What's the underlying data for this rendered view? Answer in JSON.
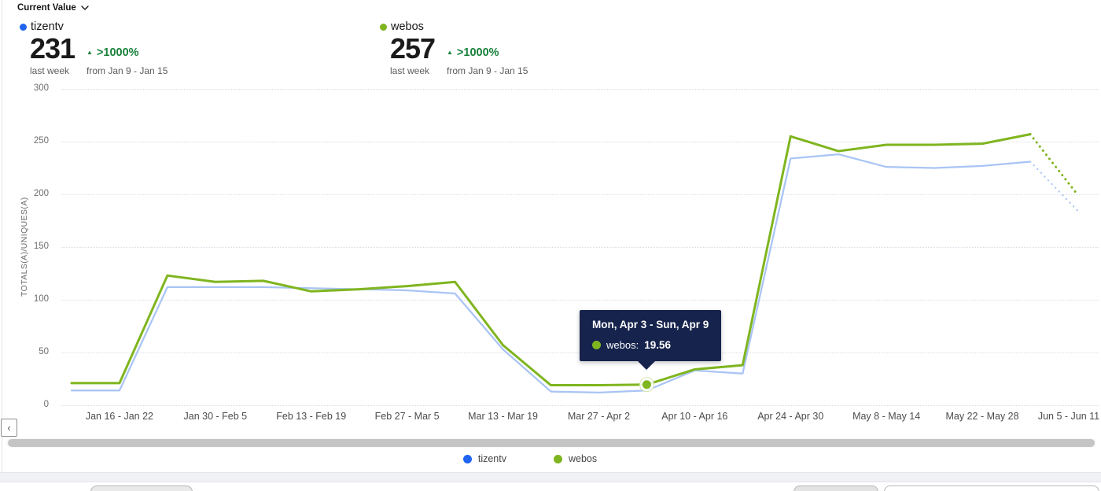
{
  "colors": {
    "positive": "#18813b",
    "tooltip_bg": "#16234d",
    "grid": "#d9dde6",
    "accent_blue": "#2064f0",
    "accent_green": "#7fb51f"
  },
  "header": {
    "metric_selector": {
      "label": "Current Value"
    },
    "metrics": [
      {
        "series": "tizentv",
        "dot_color": "#2064f0",
        "value": "231",
        "period": "last week",
        "change": ">1000%",
        "change_direction": "up",
        "compare": "from Jan 9 - Jan 15"
      },
      {
        "series": "webos",
        "dot_color": "#7fb51f",
        "value": "257",
        "period": "last week",
        "change": ">1000%",
        "change_direction": "up",
        "compare": "from Jan 9 - Jan 15"
      }
    ]
  },
  "chart_data": {
    "type": "line",
    "ylabel": "TOTALS(A)/UNIQUES(A)",
    "ylim": [
      0,
      300
    ],
    "yticks": [
      0,
      50,
      100,
      150,
      200,
      250,
      300
    ],
    "grid": "horizontal-dotted",
    "x_unit": "week",
    "n_points": 22,
    "x_tick_labels": [
      "Jan 16 - Jan 22",
      "Jan 30 - Feb 5",
      "Feb 13 - Feb 19",
      "Feb 27 - Mar 5",
      "Mar 13 - Mar 19",
      "Mar 27 - Apr 2",
      "Apr 10 - Apr 16",
      "Apr 24 - Apr 30",
      "May 8 - May 14",
      "May 22 - May 28",
      "Jun 5 - Jun 11"
    ],
    "x_tick_indices": [
      1,
      3,
      5,
      7,
      9,
      11,
      13,
      15,
      17,
      19,
      21
    ],
    "last_point_partial_dashed": true,
    "series": [
      {
        "name": "tizentv",
        "color": "#a9c4f4",
        "legend_color": "#2064f0",
        "line_width": 2.25,
        "values": [
          14,
          14,
          112,
          112,
          112,
          111,
          110,
          109,
          106,
          53,
          13,
          12,
          14,
          33,
          30,
          234,
          238,
          226,
          225,
          227,
          231,
          184
        ]
      },
      {
        "name": "webos",
        "color": "#7fb51f",
        "legend_color": "#7fb51f",
        "line_width": 3,
        "values": [
          21,
          21,
          123,
          117,
          118,
          108,
          110,
          113,
          117,
          57,
          19,
          19,
          19.56,
          34,
          38,
          255,
          241,
          247,
          247,
          248,
          257,
          199
        ]
      }
    ]
  },
  "tooltip": {
    "title": "Mon, Apr 3 - Sun, Apr 9",
    "series": "webos",
    "label": "webos:",
    "value": "19.56",
    "dot_color": "#7fb51f",
    "point_index": 12
  },
  "legend": {
    "items": [
      {
        "label": "tizentv",
        "color": "#2064f0"
      },
      {
        "label": "webos",
        "color": "#7fb51f"
      }
    ]
  },
  "scroll": {
    "prev_icon": "‹"
  }
}
